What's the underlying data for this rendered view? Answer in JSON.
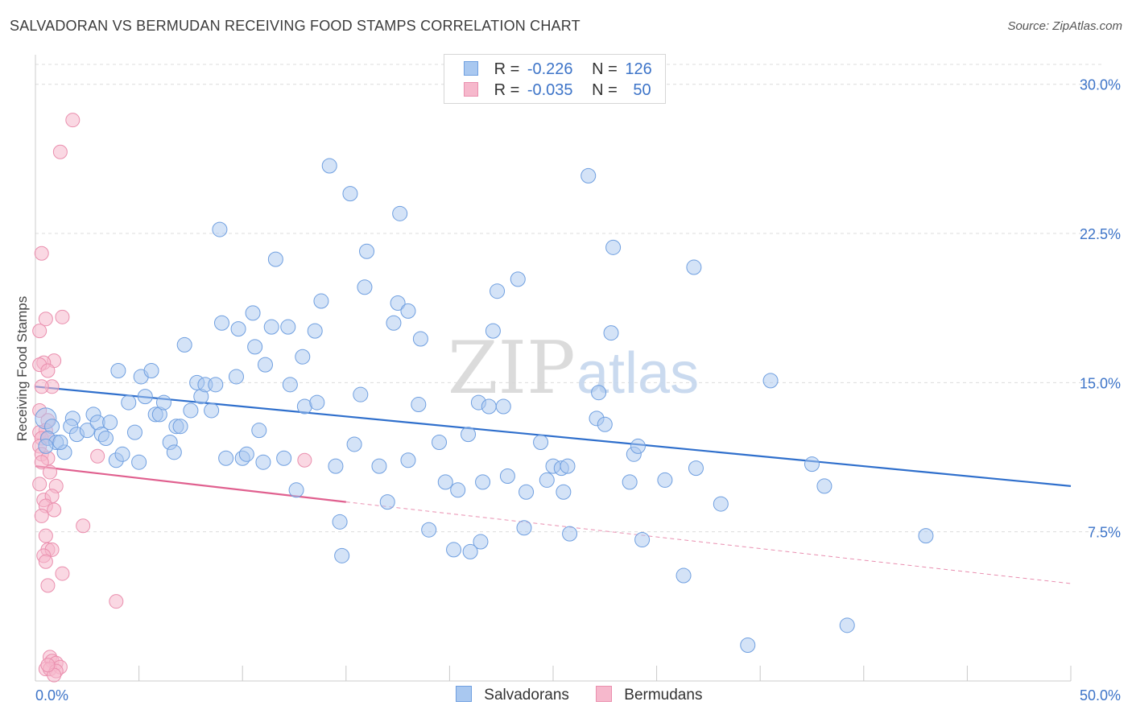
{
  "header": {
    "title": "SALVADORAN VS BERMUDAN RECEIVING FOOD STAMPS CORRELATION CHART",
    "source": "Source: ZipAtlas.com"
  },
  "watermark": {
    "zip": "ZIP",
    "atlas": "atlas"
  },
  "legend": {
    "rows": [
      {
        "r_label": "R =",
        "r_value": "-0.226",
        "n_label": "N =",
        "n_value": "126"
      },
      {
        "r_label": "R =",
        "r_value": "-0.035",
        "n_label": "N =",
        "n_value": "50"
      }
    ]
  },
  "bottom_legend": {
    "salvadorans": "Salvadorans",
    "bermudans": "Bermudans"
  },
  "colors": {
    "salvadoran_fill": "#a9c8f0",
    "salvadoran_stroke": "#6f9fe0",
    "salvadoran_line": "#2f6fcc",
    "bermudan_fill": "#f6b8cc",
    "bermudan_stroke": "#ea8fae",
    "bermudan_line": "#e0608f",
    "grid": "#dcdcdc",
    "tick_label": "#3d74c8"
  },
  "chart_data": {
    "type": "scatter",
    "title": "SALVADORAN VS BERMUDAN RECEIVING FOOD STAMPS CORRELATION CHART",
    "xlabel": "",
    "ylabel": "Receiving Food Stamps",
    "xlim": [
      0,
      50
    ],
    "ylim": [
      0,
      31
    ],
    "x_tick_labels": [
      "0.0%",
      "50.0%"
    ],
    "y_ticks": [
      7.5,
      15.0,
      22.5,
      30.0
    ],
    "y_tick_labels": [
      "7.5%",
      "15.0%",
      "22.5%",
      "30.0%"
    ],
    "grid": "horizontal dashed",
    "legend_position": "top-center",
    "series": [
      {
        "name": "Salvadorans",
        "R": -0.226,
        "N": 126,
        "trend": {
          "x": [
            0,
            50
          ],
          "y": [
            14.8,
            9.8
          ]
        },
        "points": [
          [
            0.5,
            13.2
          ],
          [
            0.8,
            12.8
          ],
          [
            0.6,
            12.2
          ],
          [
            1.0,
            12.0
          ],
          [
            1.4,
            11.5
          ],
          [
            1.8,
            13.2
          ],
          [
            1.7,
            12.8
          ],
          [
            2.0,
            12.4
          ],
          [
            2.5,
            12.6
          ],
          [
            2.8,
            13.4
          ],
          [
            3.0,
            13.0
          ],
          [
            3.2,
            12.4
          ],
          [
            3.4,
            12.2
          ],
          [
            3.6,
            13.0
          ],
          [
            3.9,
            11.1
          ],
          [
            4.2,
            11.4
          ],
          [
            4.0,
            15.6
          ],
          [
            4.5,
            14.0
          ],
          [
            4.8,
            12.5
          ],
          [
            5.0,
            11.0
          ],
          [
            5.1,
            15.3
          ],
          [
            5.3,
            14.3
          ],
          [
            5.6,
            15.6
          ],
          [
            5.8,
            13.4
          ],
          [
            6.0,
            13.4
          ],
          [
            6.2,
            14.0
          ],
          [
            6.5,
            12.0
          ],
          [
            6.7,
            11.5
          ],
          [
            6.8,
            12.8
          ],
          [
            7.0,
            12.8
          ],
          [
            7.2,
            16.9
          ],
          [
            7.5,
            13.6
          ],
          [
            7.8,
            15.0
          ],
          [
            8.0,
            14.3
          ],
          [
            8.2,
            14.9
          ],
          [
            8.5,
            13.6
          ],
          [
            8.7,
            14.9
          ],
          [
            8.9,
            22.7
          ],
          [
            9.2,
            11.2
          ],
          [
            9.0,
            18.0
          ],
          [
            9.7,
            15.3
          ],
          [
            9.8,
            17.7
          ],
          [
            10.0,
            11.2
          ],
          [
            10.2,
            11.4
          ],
          [
            10.5,
            18.5
          ],
          [
            10.6,
            16.8
          ],
          [
            10.8,
            12.6
          ],
          [
            11.0,
            11.0
          ],
          [
            11.1,
            15.9
          ],
          [
            11.4,
            17.8
          ],
          [
            11.6,
            21.2
          ],
          [
            12.0,
            11.2
          ],
          [
            12.2,
            17.8
          ],
          [
            12.3,
            14.9
          ],
          [
            12.6,
            9.6
          ],
          [
            12.9,
            16.3
          ],
          [
            13.0,
            13.8
          ],
          [
            13.5,
            17.6
          ],
          [
            13.6,
            14.0
          ],
          [
            13.8,
            19.1
          ],
          [
            14.2,
            25.9
          ],
          [
            14.5,
            10.8
          ],
          [
            14.7,
            8.0
          ],
          [
            14.8,
            6.3
          ],
          [
            15.2,
            24.5
          ],
          [
            15.4,
            11.9
          ],
          [
            15.7,
            14.4
          ],
          [
            15.9,
            19.8
          ],
          [
            16.0,
            21.6
          ],
          [
            16.6,
            10.8
          ],
          [
            17.0,
            9.0
          ],
          [
            17.3,
            18.0
          ],
          [
            17.5,
            19.0
          ],
          [
            17.6,
            23.5
          ],
          [
            18.0,
            11.1
          ],
          [
            18.0,
            18.6
          ],
          [
            18.5,
            13.9
          ],
          [
            18.6,
            17.2
          ],
          [
            19.0,
            7.6
          ],
          [
            19.5,
            12.0
          ],
          [
            19.8,
            10.0
          ],
          [
            20.2,
            6.6
          ],
          [
            20.4,
            9.6
          ],
          [
            20.9,
            12.4
          ],
          [
            21.0,
            6.5
          ],
          [
            21.4,
            14.0
          ],
          [
            21.5,
            7.0
          ],
          [
            21.6,
            10.0
          ],
          [
            21.9,
            13.8
          ],
          [
            22.1,
            17.6
          ],
          [
            22.3,
            19.6
          ],
          [
            22.6,
            13.8
          ],
          [
            22.8,
            10.3
          ],
          [
            23.3,
            20.2
          ],
          [
            23.6,
            7.7
          ],
          [
            23.7,
            9.5
          ],
          [
            24.4,
            12.0
          ],
          [
            24.7,
            10.1
          ],
          [
            25.0,
            10.8
          ],
          [
            25.4,
            10.7
          ],
          [
            25.5,
            9.5
          ],
          [
            25.8,
            7.4
          ],
          [
            25.7,
            10.8
          ],
          [
            26.7,
            25.4
          ],
          [
            27.1,
            13.2
          ],
          [
            27.2,
            14.5
          ],
          [
            27.5,
            12.9
          ],
          [
            27.8,
            17.5
          ],
          [
            27.9,
            21.8
          ],
          [
            28.7,
            10.0
          ],
          [
            28.9,
            11.4
          ],
          [
            29.1,
            11.8
          ],
          [
            29.3,
            7.1
          ],
          [
            30.4,
            10.1
          ],
          [
            31.3,
            5.3
          ],
          [
            31.8,
            20.8
          ],
          [
            31.9,
            10.7
          ],
          [
            33.1,
            8.9
          ],
          [
            34.4,
            1.8
          ],
          [
            35.5,
            15.1
          ],
          [
            37.5,
            10.9
          ],
          [
            38.1,
            9.8
          ],
          [
            39.2,
            2.8
          ],
          [
            43.0,
            7.3
          ],
          [
            0.5,
            11.8
          ],
          [
            1.2,
            12.0
          ]
        ]
      },
      {
        "name": "Bermudans",
        "R": -0.035,
        "N": 50,
        "trend": {
          "x": [
            0,
            15
          ],
          "y": [
            10.8,
            9.0
          ]
        },
        "trend_extended": {
          "x": [
            15,
            50
          ],
          "y": [
            9.0,
            4.9
          ]
        },
        "points": [
          [
            1.8,
            28.2
          ],
          [
            1.2,
            26.6
          ],
          [
            0.3,
            21.5
          ],
          [
            0.5,
            18.2
          ],
          [
            1.3,
            18.3
          ],
          [
            0.2,
            17.6
          ],
          [
            0.9,
            16.1
          ],
          [
            0.4,
            16.0
          ],
          [
            0.2,
            15.9
          ],
          [
            0.6,
            15.6
          ],
          [
            0.8,
            14.8
          ],
          [
            0.3,
            14.8
          ],
          [
            0.2,
            13.6
          ],
          [
            0.6,
            13.1
          ],
          [
            0.5,
            12.6
          ],
          [
            0.2,
            12.5
          ],
          [
            0.3,
            12.2
          ],
          [
            0.6,
            12.2
          ],
          [
            0.2,
            11.8
          ],
          [
            0.3,
            11.4
          ],
          [
            0.6,
            11.2
          ],
          [
            3.0,
            11.3
          ],
          [
            0.3,
            11.0
          ],
          [
            0.7,
            10.5
          ],
          [
            13.0,
            11.1
          ],
          [
            0.2,
            9.9
          ],
          [
            1.0,
            9.8
          ],
          [
            0.4,
            9.1
          ],
          [
            0.8,
            9.3
          ],
          [
            0.5,
            8.8
          ],
          [
            0.9,
            8.6
          ],
          [
            0.3,
            8.3
          ],
          [
            2.3,
            7.8
          ],
          [
            0.5,
            7.3
          ],
          [
            0.6,
            6.6
          ],
          [
            0.8,
            6.6
          ],
          [
            0.4,
            6.3
          ],
          [
            0.5,
            6.0
          ],
          [
            1.3,
            5.4
          ],
          [
            0.6,
            4.8
          ],
          [
            3.9,
            4.0
          ],
          [
            0.7,
            1.2
          ],
          [
            0.8,
            1.0
          ],
          [
            1.0,
            0.9
          ],
          [
            0.5,
            0.6
          ],
          [
            0.7,
            0.6
          ],
          [
            1.2,
            0.7
          ],
          [
            1.0,
            0.5
          ],
          [
            0.9,
            0.3
          ],
          [
            0.6,
            0.8
          ]
        ]
      }
    ]
  }
}
